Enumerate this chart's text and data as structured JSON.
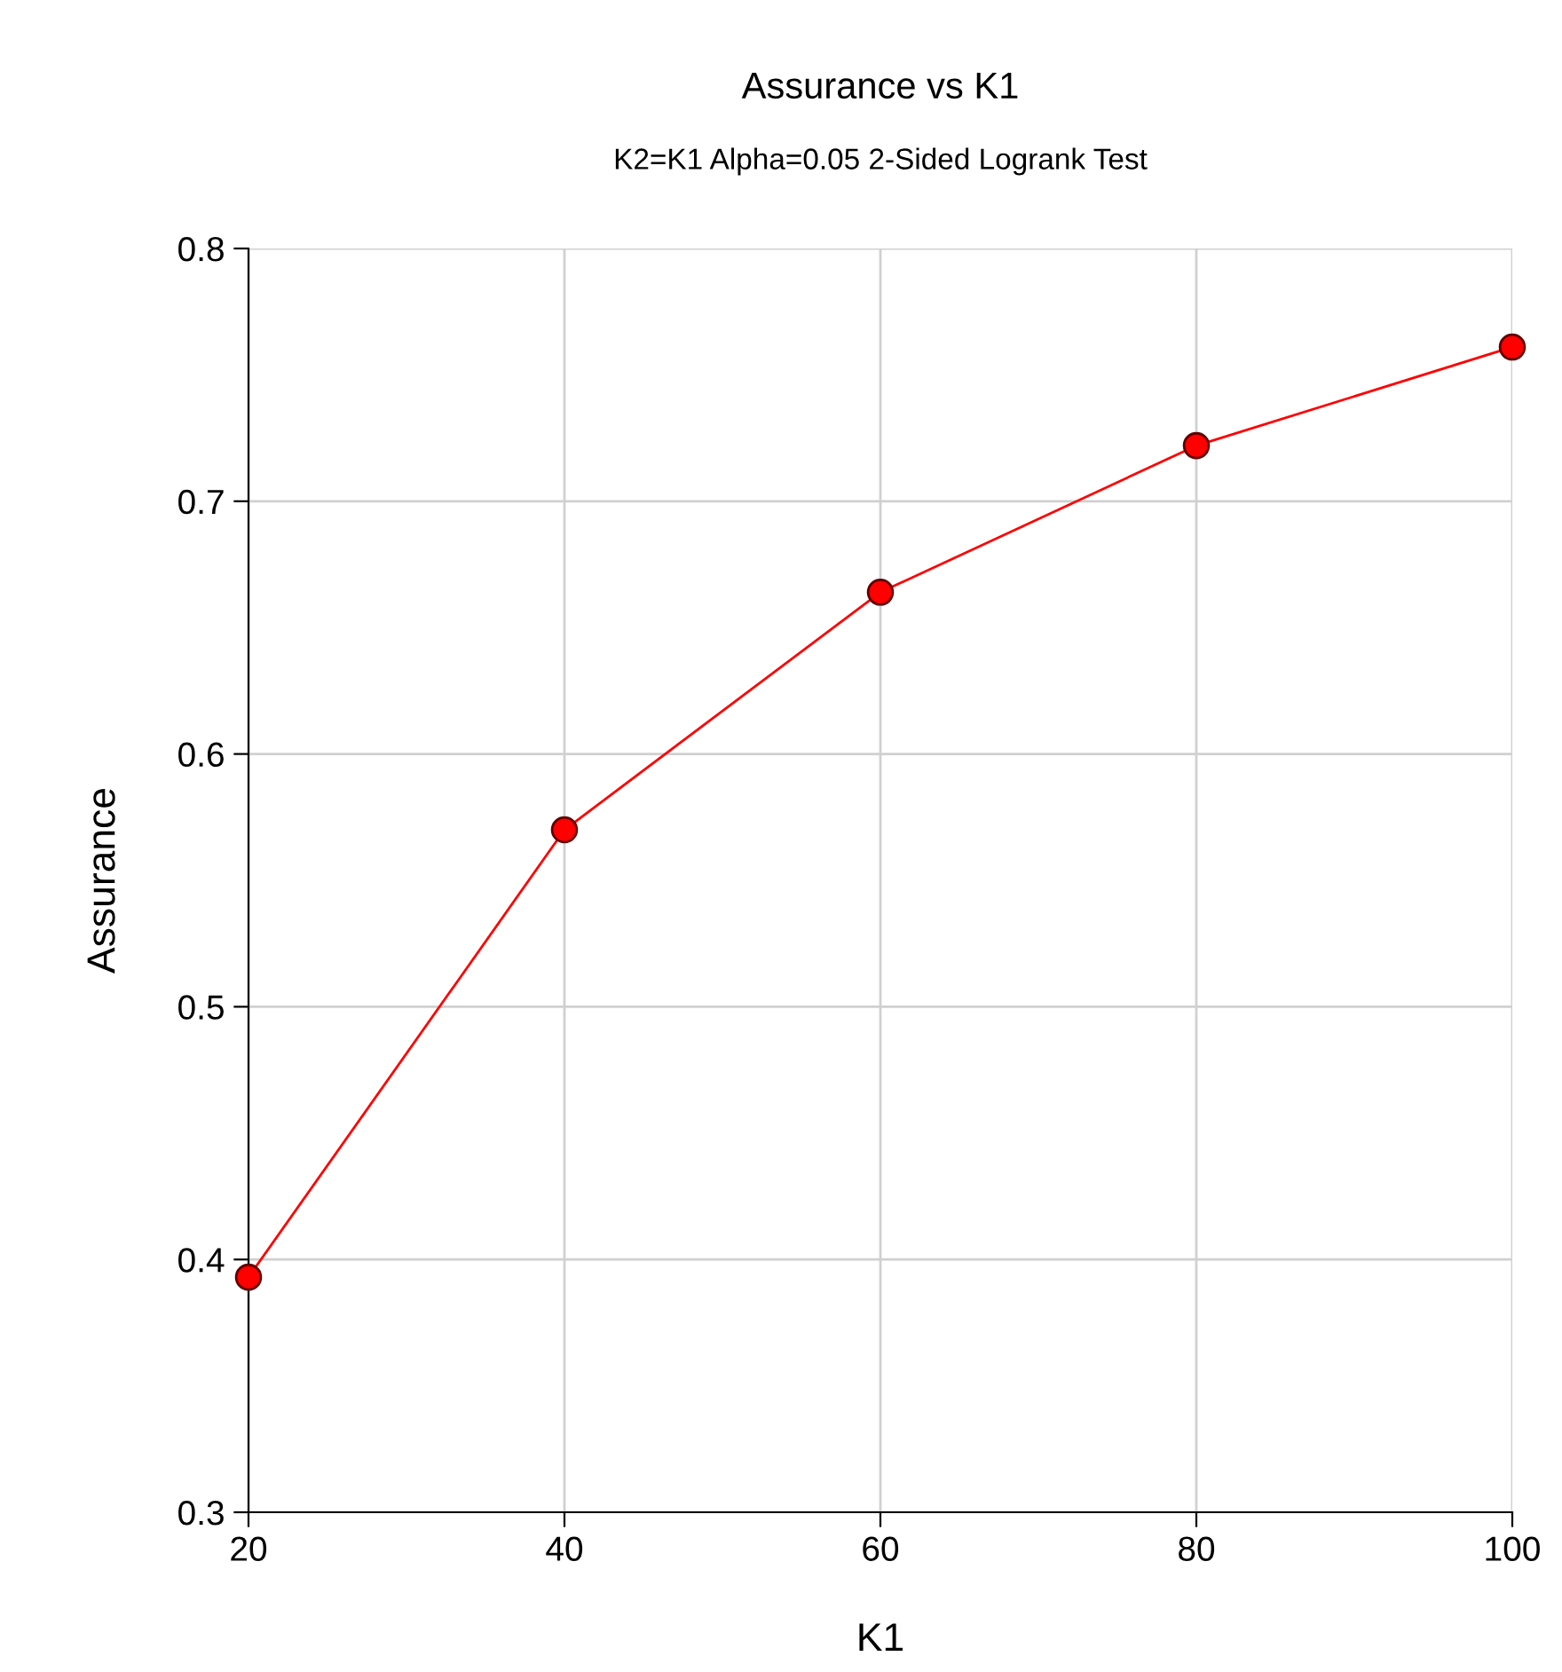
{
  "chart_data": {
    "type": "line",
    "title": "Assurance vs K1",
    "subtitle": "K2=K1 Alpha=0.05 2-Sided Logrank Test",
    "xlabel": "K1",
    "ylabel": "Assurance",
    "x": [
      20,
      40,
      60,
      80,
      100
    ],
    "series": [
      {
        "color": "#ff0000",
        "values": [
          0.393,
          0.57,
          0.664,
          0.722,
          0.761
        ]
      }
    ],
    "xlim": [
      20,
      100
    ],
    "xticks": [
      20,
      40,
      60,
      80,
      100
    ],
    "ylim": [
      0.3,
      0.8
    ],
    "yticks": [
      {
        "value": 0.3,
        "label": "0.3"
      },
      {
        "value": 0.4,
        "label": "0.4"
      },
      {
        "value": 0.5,
        "label": "0.5"
      },
      {
        "value": 0.6,
        "label": "0.6"
      },
      {
        "value": 0.7,
        "label": "0.7"
      },
      {
        "value": 0.8,
        "label": "0.8"
      }
    ],
    "grid": true,
    "marker": "circle",
    "line_style": "solid"
  }
}
